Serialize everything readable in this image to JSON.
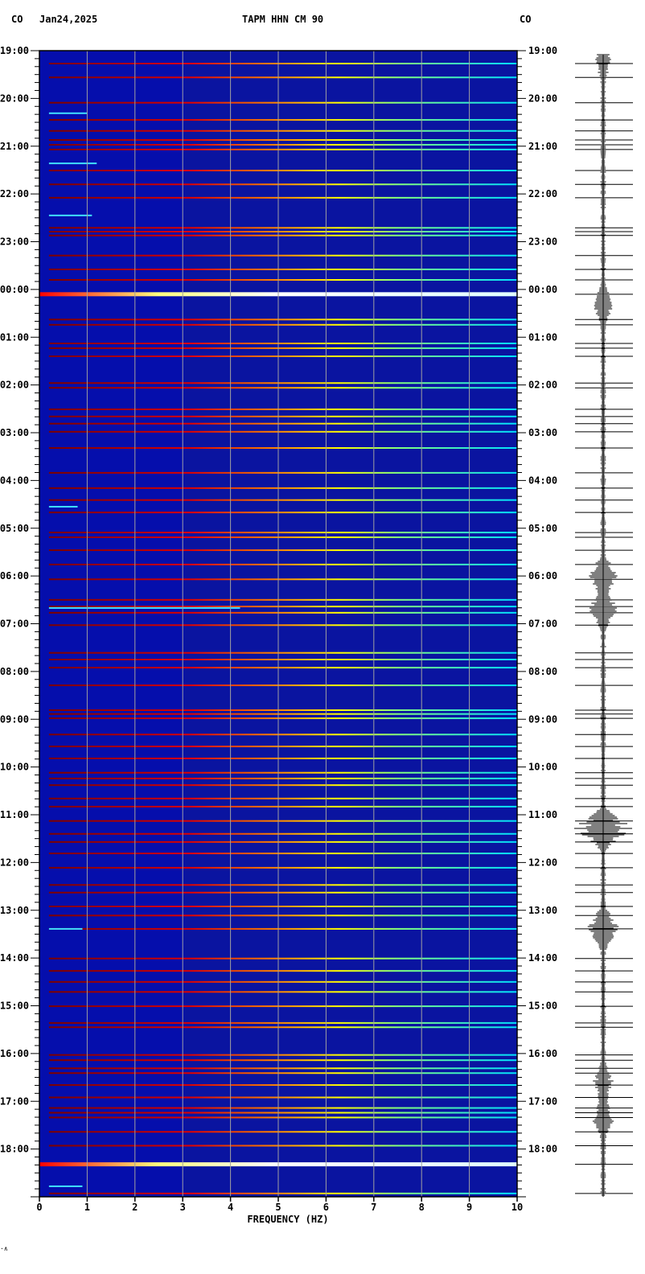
{
  "header": {
    "network_left": "CO",
    "date": "Jan24,2025",
    "station_title": "TAPM HHN CM 90",
    "network_right": "CO"
  },
  "footer_mark": "·∧",
  "chart_data": {
    "type": "heatmap",
    "title": "TAPM HHN CM 90",
    "xlabel": "FREQUENCY (HZ)",
    "ylabel": "",
    "xlim": [
      0,
      10
    ],
    "x_ticks": [
      "0",
      "1",
      "2",
      "3",
      "4",
      "5",
      "6",
      "7",
      "8",
      "9",
      "10"
    ],
    "start_time": "19:00",
    "duration_hours": 24,
    "y_tick_labels": [
      "19:00",
      "20:00",
      "21:00",
      "22:00",
      "23:00",
      "00:00",
      "01:00",
      "02:00",
      "03:00",
      "04:00",
      "05:00",
      "06:00",
      "07:00",
      "08:00",
      "09:00",
      "10:00",
      "11:00",
      "12:00",
      "13:00",
      "14:00",
      "15:00",
      "16:00",
      "17:00",
      "18:00"
    ],
    "minor_tick_minutes": 10,
    "grid": true,
    "background_color": "#0a14a0",
    "line_colors": [
      "#7a0000",
      "#e00000",
      "#ff8000",
      "#ffff00",
      "#80ff80",
      "#00e0ff"
    ],
    "spectral_lines_hours": [
      0.27,
      0.56,
      1.09,
      1.45,
      1.68,
      1.87,
      1.97,
      2.07,
      2.51,
      2.8,
      3.08,
      3.71,
      3.79,
      3.87,
      4.29,
      4.58,
      4.8,
      5.63,
      5.74,
      6.13,
      6.23,
      6.4,
      6.96,
      7.06,
      7.51,
      7.66,
      7.81,
      7.98,
      8.32,
      8.84,
      9.16,
      9.41,
      9.67,
      10.09,
      10.19,
      10.46,
      10.76,
      11.07,
      11.5,
      11.64,
      11.77,
      12.03,
      12.61,
      12.75,
      12.92,
      13.29,
      13.81,
      13.89,
      13.98,
      14.32,
      14.57,
      14.82,
      15.12,
      15.24,
      15.38,
      15.66,
      15.83,
      16.13,
      16.4,
      16.57,
      16.81,
      17.11,
      17.47,
      17.63,
      17.92,
      18.11,
      18.39,
      19.01,
      19.27,
      19.5,
      19.71,
      20.01,
      20.36,
      20.45,
      21.03,
      21.14,
      21.31,
      21.41,
      21.66,
      21.92,
      22.14,
      22.24,
      22.34,
      22.64,
      22.93,
      23.93
    ],
    "bright_bands_hours": [
      5.1,
      23.32
    ],
    "short_events": [
      {
        "hour": 1.31,
        "max_hz": 1.0
      },
      {
        "hour": 2.36,
        "max_hz": 1.2
      },
      {
        "hour": 3.45,
        "max_hz": 1.1
      },
      {
        "hour": 9.55,
        "max_hz": 0.8
      },
      {
        "hour": 11.67,
        "max_hz": 4.2
      },
      {
        "hour": 18.39,
        "max_hz": 0.9
      },
      {
        "hour": 23.78,
        "max_hz": 0.9
      }
    ],
    "seismogram_bursts": [
      {
        "hour": 0.17,
        "amp": 0.25
      },
      {
        "hour": 5.35,
        "amp": 0.3
      },
      {
        "hour": 11.0,
        "amp": 0.5
      },
      {
        "hour": 11.7,
        "amp": 0.5
      },
      {
        "hour": 16.3,
        "amp": 1.0
      },
      {
        "hour": 18.39,
        "amp": 0.6
      },
      {
        "hour": 21.6,
        "amp": 0.3
      },
      {
        "hour": 22.35,
        "amp": 0.35
      }
    ]
  }
}
